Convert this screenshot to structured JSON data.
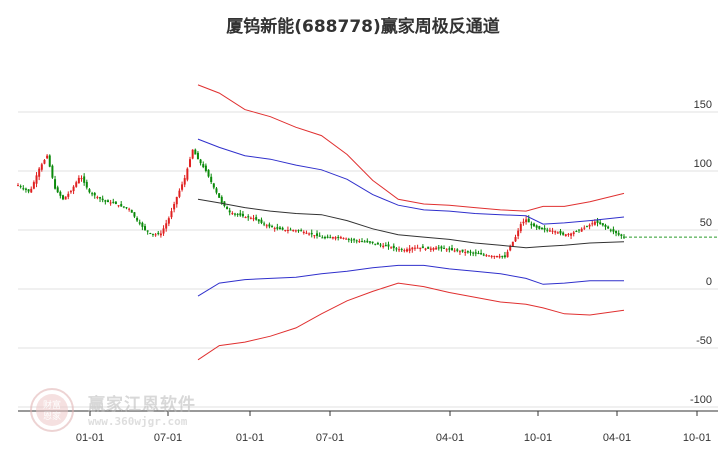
{
  "chart_data": {
    "type": "line",
    "title": "厦钨新能(688778)赢家周极反通道",
    "y_ticks": [
      150,
      100,
      50,
      0,
      -50,
      -100
    ],
    "x_ticks": [
      "01-01",
      "07-01",
      "01-01",
      "07-01",
      "04-01",
      "10-01",
      "04-01",
      "10-01"
    ],
    "ylim": [
      -100,
      175
    ],
    "grid": "horizontal",
    "last_price": 44,
    "series": [
      {
        "color": "#e03030",
        "points": [
          [
            0.0,
            173
          ],
          [
            0.05,
            166
          ],
          [
            0.11,
            152
          ],
          [
            0.17,
            146
          ],
          [
            0.23,
            137
          ],
          [
            0.29,
            130
          ],
          [
            0.35,
            114
          ],
          [
            0.41,
            92
          ],
          [
            0.47,
            76
          ],
          [
            0.53,
            72
          ],
          [
            0.59,
            71
          ],
          [
            0.65,
            69
          ],
          [
            0.71,
            67
          ],
          [
            0.77,
            66
          ],
          [
            0.81,
            70
          ],
          [
            0.86,
            70
          ],
          [
            0.92,
            74
          ],
          [
            1.0,
            81
          ]
        ]
      },
      {
        "color": "#3030cc",
        "points": [
          [
            0.0,
            127
          ],
          [
            0.05,
            120
          ],
          [
            0.11,
            113
          ],
          [
            0.17,
            110
          ],
          [
            0.23,
            105
          ],
          [
            0.29,
            101
          ],
          [
            0.35,
            93
          ],
          [
            0.41,
            80
          ],
          [
            0.47,
            71
          ],
          [
            0.53,
            67
          ],
          [
            0.59,
            66
          ],
          [
            0.65,
            64
          ],
          [
            0.71,
            63
          ],
          [
            0.77,
            62
          ],
          [
            0.81,
            55
          ],
          [
            0.86,
            56
          ],
          [
            0.92,
            58
          ],
          [
            1.0,
            61
          ]
        ]
      },
      {
        "color": "#333333",
        "points": [
          [
            0.0,
            76
          ],
          [
            0.05,
            73
          ],
          [
            0.11,
            69
          ],
          [
            0.17,
            66
          ],
          [
            0.23,
            64
          ],
          [
            0.29,
            63
          ],
          [
            0.35,
            58
          ],
          [
            0.41,
            51
          ],
          [
            0.47,
            46
          ],
          [
            0.53,
            44
          ],
          [
            0.59,
            42
          ],
          [
            0.65,
            39
          ],
          [
            0.71,
            37
          ],
          [
            0.77,
            35
          ],
          [
            0.81,
            36
          ],
          [
            0.86,
            37
          ],
          [
            0.92,
            39
          ],
          [
            1.0,
            40
          ]
        ]
      },
      {
        "color": "#3030cc",
        "points": [
          [
            0.0,
            -6
          ],
          [
            0.05,
            5
          ],
          [
            0.11,
            8
          ],
          [
            0.17,
            9
          ],
          [
            0.23,
            10
          ],
          [
            0.29,
            13
          ],
          [
            0.35,
            15
          ],
          [
            0.41,
            18
          ],
          [
            0.47,
            20
          ],
          [
            0.53,
            20
          ],
          [
            0.59,
            17
          ],
          [
            0.65,
            15
          ],
          [
            0.71,
            13
          ],
          [
            0.77,
            9
          ],
          [
            0.81,
            4
          ],
          [
            0.86,
            5
          ],
          [
            0.92,
            7
          ],
          [
            1.0,
            7
          ]
        ]
      },
      {
        "color": "#e03030",
        "points": [
          [
            0.0,
            -60
          ],
          [
            0.05,
            -48
          ],
          [
            0.11,
            -45
          ],
          [
            0.17,
            -40
          ],
          [
            0.23,
            -33
          ],
          [
            0.29,
            -21
          ],
          [
            0.35,
            -10
          ],
          [
            0.41,
            -2
          ],
          [
            0.47,
            5
          ],
          [
            0.53,
            2
          ],
          [
            0.59,
            -3
          ],
          [
            0.65,
            -7
          ],
          [
            0.71,
            -11
          ],
          [
            0.77,
            -13
          ],
          [
            0.81,
            -16
          ],
          [
            0.86,
            -21
          ],
          [
            0.92,
            -22
          ],
          [
            1.0,
            -18
          ]
        ]
      }
    ],
    "band_x_range": [
      0.2735,
      0.8564
    ],
    "candle_points": [
      [
        0,
        88
      ],
      [
        9,
        82
      ],
      [
        16,
        102
      ],
      [
        22,
        113
      ],
      [
        28,
        85
      ],
      [
        34,
        76
      ],
      [
        40,
        83
      ],
      [
        47,
        96
      ],
      [
        54,
        82
      ],
      [
        60,
        78
      ],
      [
        66,
        74
      ],
      [
        72,
        73
      ],
      [
        78,
        70
      ],
      [
        84,
        68
      ],
      [
        90,
        58
      ],
      [
        96,
        50
      ],
      [
        102,
        46
      ],
      [
        108,
        47
      ],
      [
        114,
        60
      ],
      [
        120,
        78
      ],
      [
        126,
        94
      ],
      [
        132,
        118
      ],
      [
        136,
        110
      ],
      [
        142,
        100
      ],
      [
        148,
        86
      ],
      [
        154,
        73
      ],
      [
        160,
        65
      ],
      [
        166,
        63
      ],
      [
        172,
        61
      ],
      [
        178,
        60
      ],
      [
        184,
        56
      ],
      [
        190,
        53
      ],
      [
        196,
        51
      ],
      [
        202,
        50
      ],
      [
        208,
        50
      ],
      [
        214,
        49
      ],
      [
        220,
        47
      ],
      [
        226,
        45
      ],
      [
        232,
        43
      ],
      [
        238,
        44
      ],
      [
        244,
        44
      ],
      [
        250,
        42
      ],
      [
        256,
        41
      ],
      [
        262,
        40
      ],
      [
        268,
        39
      ],
      [
        274,
        37
      ],
      [
        280,
        36
      ],
      [
        286,
        34
      ],
      [
        292,
        33
      ],
      [
        298,
        35
      ],
      [
        304,
        35
      ],
      [
        310,
        34
      ],
      [
        316,
        35
      ],
      [
        322,
        34
      ],
      [
        328,
        33
      ],
      [
        334,
        32
      ],
      [
        340,
        31
      ],
      [
        346,
        30
      ],
      [
        352,
        29
      ],
      [
        358,
        28
      ],
      [
        364,
        28
      ],
      [
        368,
        27
      ],
      [
        372,
        36
      ],
      [
        376,
        44
      ],
      [
        380,
        55
      ],
      [
        384,
        59
      ],
      [
        388,
        54
      ],
      [
        394,
        51
      ],
      [
        400,
        50
      ],
      [
        406,
        49
      ],
      [
        412,
        46
      ],
      [
        418,
        47
      ],
      [
        424,
        50
      ],
      [
        430,
        53
      ],
      [
        436,
        57
      ],
      [
        442,
        54
      ],
      [
        448,
        50
      ],
      [
        454,
        46
      ],
      [
        458,
        44
      ]
    ]
  },
  "watermark": {
    "logo_text": [
      "财富",
      "恩家"
    ],
    "name": "赢家江恩软件",
    "url": "www.360wjgr.com"
  }
}
